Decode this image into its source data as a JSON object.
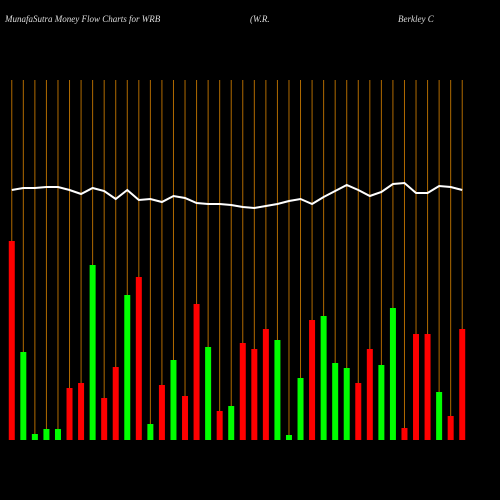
{
  "chart_data": {
    "type": "bar",
    "title": "MunafaSutra  Money Flow  Charts for WRB",
    "subtitle": "(W.R.",
    "subtitle2": "Berkley C",
    "values": [
      199,
      88,
      6,
      11,
      11,
      52,
      57,
      175,
      42,
      73,
      145,
      163,
      16,
      55,
      80,
      44,
      136,
      93,
      29,
      34,
      97,
      91,
      111,
      100,
      5,
      62,
      120,
      124,
      77,
      72,
      57,
      91,
      75,
      132,
      12,
      106,
      106,
      48,
      24,
      111
    ],
    "colors": [
      "#ff0000",
      "#00ff00",
      "#00ff00",
      "#00ff00",
      "#00ff00",
      "#ff0000",
      "#ff0000",
      "#00ff00",
      "#ff0000",
      "#ff0000",
      "#00ff00",
      "#ff0000",
      "#00ff00",
      "#ff0000",
      "#00ff00",
      "#ff0000",
      "#ff0000",
      "#00ff00",
      "#ff0000",
      "#00ff00",
      "#ff0000",
      "#ff0000",
      "#ff0000",
      "#00ff00",
      "#00ff00",
      "#00ff00",
      "#ff0000",
      "#00ff00",
      "#00ff00",
      "#00ff00",
      "#ff0000",
      "#ff0000",
      "#00ff00",
      "#00ff00",
      "#ff0000",
      "#ff0000",
      "#ff0000",
      "#00ff00",
      "#ff0000",
      "#ff0000"
    ],
    "line": {
      "color": "#ffffff",
      "values": [
        250,
        252,
        252,
        253,
        253,
        250,
        246,
        252,
        249,
        241,
        250,
        240,
        241,
        238,
        244,
        242,
        237,
        236,
        236,
        235,
        233,
        232,
        234,
        236,
        239,
        241,
        236,
        243,
        249,
        255,
        250,
        244,
        248,
        256,
        257,
        247,
        247,
        254,
        253,
        250
      ]
    },
    "ylim": [
      0,
      440
    ],
    "grid": true,
    "grid_color": "#b06a00"
  }
}
